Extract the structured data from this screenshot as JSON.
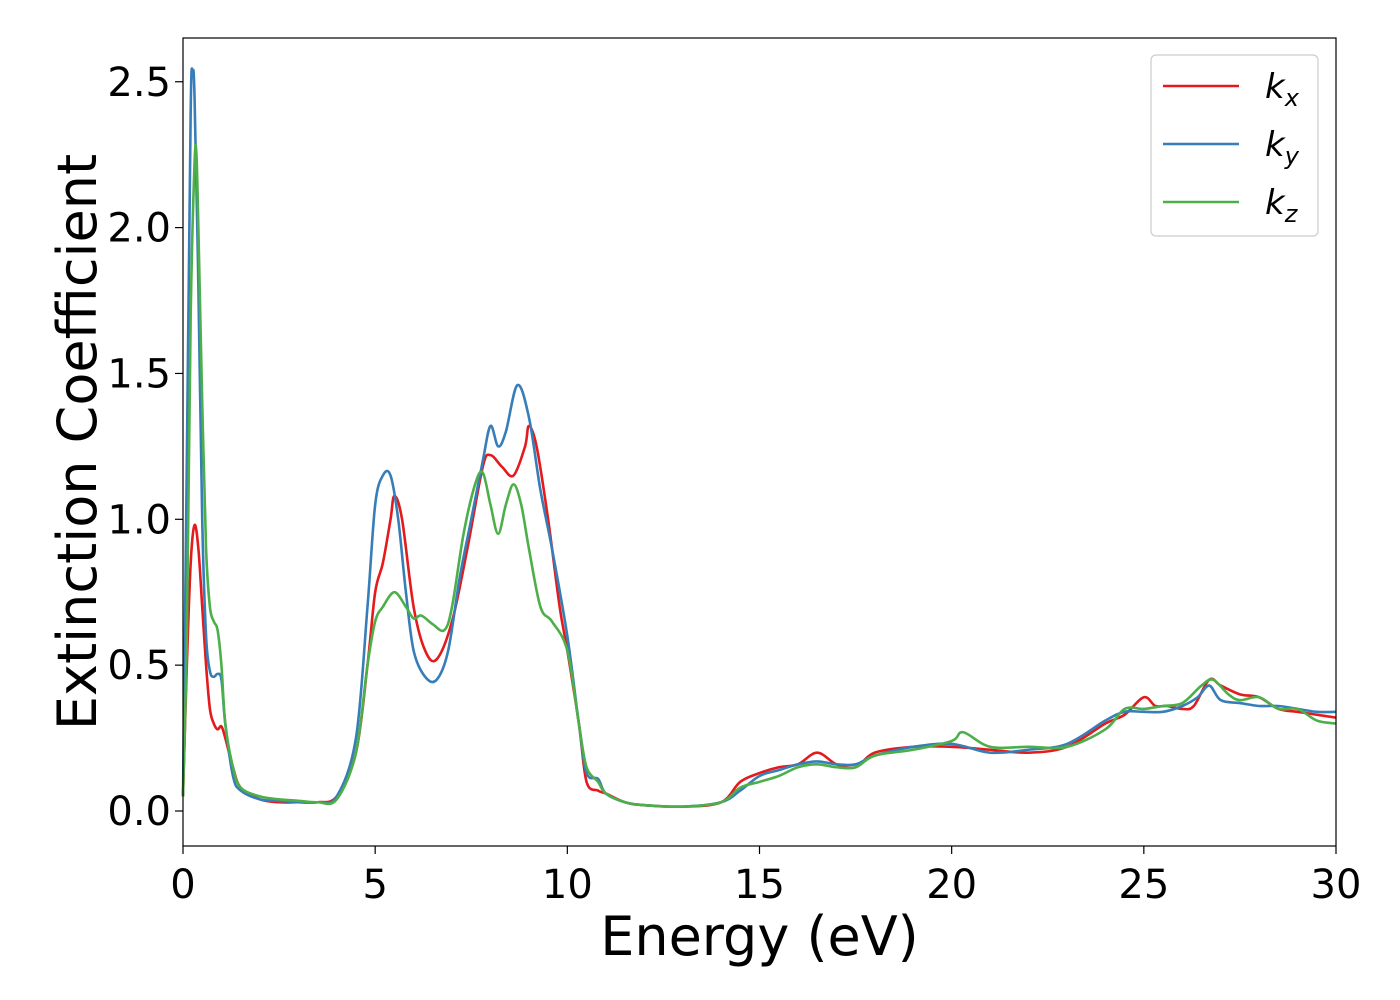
{
  "chart_data": {
    "type": "line",
    "title": "",
    "xlabel": "Energy (eV)",
    "ylabel": "Extinction Coefficient",
    "xlim": [
      0,
      30
    ],
    "ylim": [
      -0.12,
      2.65
    ],
    "xticks": [
      0,
      5,
      10,
      15,
      20,
      25,
      30
    ],
    "xtick_labels": [
      "0",
      "5",
      "10",
      "15",
      "20",
      "25",
      "30"
    ],
    "yticks": [
      0.0,
      0.5,
      1.0,
      1.5,
      2.0,
      2.5
    ],
    "ytick_labels": [
      "0.0",
      "0.5",
      "1.0",
      "1.5",
      "2.0",
      "2.5"
    ],
    "grid": false,
    "legend_position": "top-right",
    "series": [
      {
        "name": "kx",
        "legend_base": "k",
        "legend_sub": "x",
        "color": "#e41a1c",
        "x": [
          0,
          0.1,
          0.2,
          0.3,
          0.4,
          0.5,
          0.6,
          0.7,
          0.8,
          0.9,
          1.0,
          1.1,
          1.3,
          1.5,
          2.0,
          2.5,
          3.0,
          3.5,
          4.0,
          4.5,
          4.8,
          5.0,
          5.2,
          5.4,
          5.5,
          5.7,
          6.0,
          6.3,
          6.6,
          7.0,
          7.4,
          7.8,
          8.0,
          8.3,
          8.6,
          8.9,
          9.0,
          9.2,
          9.5,
          9.8,
          10.0,
          10.3,
          10.5,
          10.8,
          11.0,
          11.5,
          12.0,
          13.0,
          14.0,
          14.5,
          15.0,
          15.5,
          16.0,
          16.5,
          17.0,
          17.5,
          18.0,
          19.0,
          20.0,
          21.0,
          22.0,
          23.0,
          24.0,
          24.5,
          25.0,
          25.3,
          25.6,
          26.0,
          26.3,
          26.7,
          27.0,
          27.5,
          28.0,
          28.5,
          29.0,
          29.5,
          30.0
        ],
        "y": [
          0.05,
          0.5,
          0.85,
          0.98,
          0.9,
          0.7,
          0.5,
          0.35,
          0.3,
          0.28,
          0.29,
          0.25,
          0.15,
          0.08,
          0.04,
          0.03,
          0.03,
          0.03,
          0.05,
          0.2,
          0.5,
          0.75,
          0.85,
          1.0,
          1.08,
          1.0,
          0.7,
          0.55,
          0.52,
          0.65,
          0.9,
          1.18,
          1.22,
          1.18,
          1.15,
          1.25,
          1.32,
          1.25,
          1.0,
          0.7,
          0.55,
          0.3,
          0.1,
          0.07,
          0.06,
          0.03,
          0.02,
          0.015,
          0.03,
          0.1,
          0.13,
          0.15,
          0.16,
          0.2,
          0.16,
          0.15,
          0.2,
          0.22,
          0.22,
          0.21,
          0.2,
          0.22,
          0.3,
          0.33,
          0.39,
          0.36,
          0.36,
          0.35,
          0.36,
          0.45,
          0.43,
          0.4,
          0.39,
          0.35,
          0.34,
          0.33,
          0.32
        ]
      },
      {
        "name": "ky",
        "legend_base": "k",
        "legend_sub": "y",
        "color": "#377eb8",
        "x": [
          0,
          0.1,
          0.2,
          0.25,
          0.3,
          0.4,
          0.5,
          0.6,
          0.7,
          0.8,
          0.9,
          1.0,
          1.1,
          1.3,
          1.5,
          2.0,
          2.5,
          3.0,
          3.5,
          4.0,
          4.5,
          4.8,
          5.0,
          5.2,
          5.4,
          5.6,
          5.8,
          6.0,
          6.3,
          6.6,
          6.9,
          7.2,
          7.5,
          7.8,
          8.0,
          8.2,
          8.4,
          8.7,
          9.0,
          9.3,
          9.6,
          10.0,
          10.3,
          10.5,
          10.8,
          11.0,
          11.5,
          12.0,
          13.0,
          14.0,
          14.5,
          15.0,
          15.5,
          16.0,
          16.5,
          17.0,
          17.5,
          18.0,
          19.0,
          20.0,
          21.0,
          22.0,
          23.0,
          24.0,
          24.5,
          25.0,
          25.5,
          26.0,
          26.4,
          26.7,
          27.0,
          27.5,
          28.0,
          28.5,
          29.0,
          29.5,
          30.0
        ],
        "y": [
          0.05,
          1.2,
          2.4,
          2.53,
          2.45,
          1.8,
          1.0,
          0.6,
          0.48,
          0.46,
          0.47,
          0.45,
          0.3,
          0.12,
          0.07,
          0.04,
          0.035,
          0.03,
          0.03,
          0.05,
          0.25,
          0.7,
          1.05,
          1.15,
          1.15,
          1.0,
          0.75,
          0.55,
          0.46,
          0.45,
          0.55,
          0.8,
          1.0,
          1.2,
          1.32,
          1.25,
          1.3,
          1.46,
          1.35,
          1.1,
          0.9,
          0.6,
          0.3,
          0.13,
          0.11,
          0.06,
          0.03,
          0.02,
          0.015,
          0.03,
          0.07,
          0.12,
          0.14,
          0.16,
          0.17,
          0.16,
          0.16,
          0.19,
          0.22,
          0.23,
          0.2,
          0.21,
          0.23,
          0.31,
          0.34,
          0.34,
          0.34,
          0.36,
          0.39,
          0.43,
          0.38,
          0.37,
          0.36,
          0.36,
          0.35,
          0.34,
          0.34
        ]
      },
      {
        "name": "kz",
        "legend_base": "k",
        "legend_sub": "z",
        "color": "#4daf4a",
        "x": [
          0,
          0.1,
          0.2,
          0.3,
          0.35,
          0.4,
          0.5,
          0.6,
          0.7,
          0.8,
          0.9,
          1.0,
          1.1,
          1.3,
          1.5,
          2.0,
          2.5,
          3.0,
          3.5,
          4.0,
          4.5,
          4.8,
          5.0,
          5.2,
          5.5,
          5.8,
          6.0,
          6.2,
          6.5,
          6.8,
          7.0,
          7.3,
          7.6,
          7.8,
          8.0,
          8.2,
          8.4,
          8.6,
          8.8,
          9.0,
          9.3,
          9.6,
          10.0,
          10.3,
          10.5,
          10.8,
          11.0,
          11.5,
          12.0,
          13.0,
          14.0,
          14.5,
          15.0,
          15.5,
          16.0,
          16.5,
          17.0,
          17.5,
          18.0,
          19.0,
          20.0,
          20.3,
          21.0,
          22.0,
          23.0,
          24.0,
          24.5,
          25.0,
          25.5,
          26.0,
          26.5,
          26.8,
          27.2,
          27.5,
          28.0,
          28.5,
          29.0,
          29.5,
          30.0
        ],
        "y": [
          0.05,
          0.6,
          1.7,
          2.22,
          2.25,
          2.0,
          1.4,
          0.9,
          0.7,
          0.65,
          0.62,
          0.5,
          0.3,
          0.15,
          0.08,
          0.05,
          0.04,
          0.035,
          0.03,
          0.04,
          0.2,
          0.5,
          0.65,
          0.7,
          0.75,
          0.7,
          0.66,
          0.67,
          0.64,
          0.62,
          0.7,
          0.95,
          1.12,
          1.16,
          1.05,
          0.95,
          1.05,
          1.12,
          1.05,
          0.9,
          0.7,
          0.65,
          0.55,
          0.3,
          0.15,
          0.1,
          0.06,
          0.03,
          0.02,
          0.015,
          0.03,
          0.08,
          0.1,
          0.12,
          0.15,
          0.16,
          0.15,
          0.15,
          0.19,
          0.21,
          0.24,
          0.27,
          0.22,
          0.22,
          0.22,
          0.28,
          0.35,
          0.35,
          0.36,
          0.37,
          0.43,
          0.45,
          0.4,
          0.38,
          0.39,
          0.35,
          0.35,
          0.31,
          0.3
        ]
      }
    ]
  }
}
